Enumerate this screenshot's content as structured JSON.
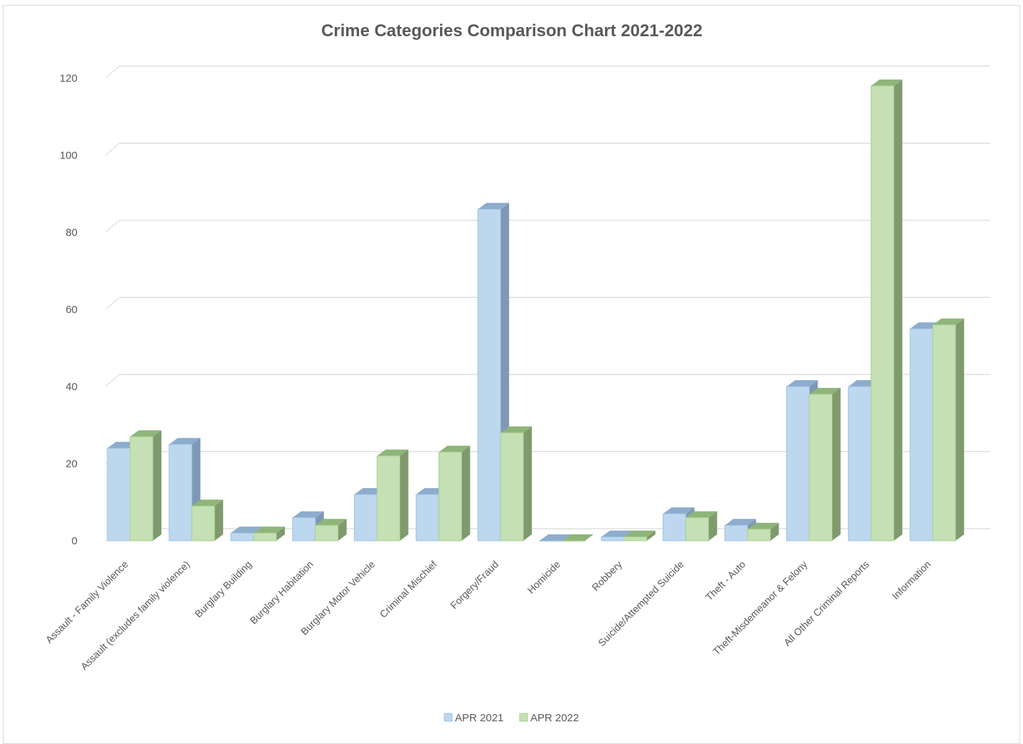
{
  "chart_data": {
    "type": "bar",
    "style": "3d-clustered-column",
    "title": "Crime Categories Comparison Chart 2021-2022",
    "xlabel": "",
    "ylabel": "",
    "ylim": [
      0,
      120
    ],
    "yticks": [
      0,
      20,
      40,
      60,
      80,
      100,
      120
    ],
    "grid": true,
    "legend_position": "bottom",
    "categories": [
      "Assault - Family Violence",
      "Assault (excludes family violence)",
      "Burglary Building",
      "Burglary Habitation",
      "Burglary Motor Vehicle",
      "Criminal Mischief",
      "Forgery/Fraud",
      "Homicide",
      "Robbery",
      "Suicide/Attempted Suicide",
      "Theft - Auto",
      "Theft-Misdemeanor &  Felony",
      "All Other Criminal Reports",
      "Information"
    ],
    "series": [
      {
        "name": "APR 2021",
        "color": "#bdd7ee",
        "values": [
          24,
          25,
          2,
          6,
          12,
          12,
          86,
          0,
          1,
          7,
          4,
          40,
          40,
          55
        ]
      },
      {
        "name": "APR 2022",
        "color": "#c5e0b4",
        "values": [
          27,
          9,
          2,
          4,
          22,
          23,
          28,
          0,
          1,
          6,
          3,
          38,
          118,
          56
        ]
      }
    ]
  }
}
